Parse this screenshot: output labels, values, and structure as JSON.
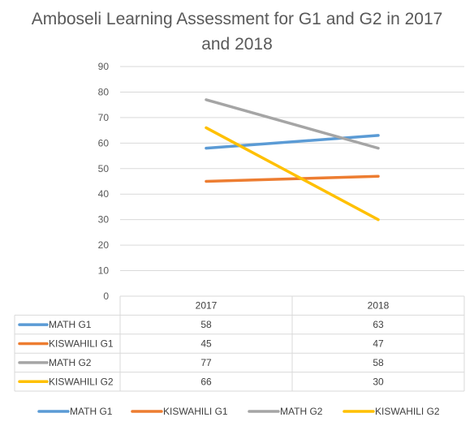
{
  "chart_data": {
    "type": "line",
    "title": "Amboseli Learning Assessment for G1 and G2 in 2017 and 2018",
    "categories": [
      "2017",
      "2018"
    ],
    "y_ticks": [
      "0",
      "10",
      "20",
      "30",
      "40",
      "50",
      "60",
      "70",
      "80",
      "90"
    ],
    "ylim": [
      0,
      90
    ],
    "grid": true,
    "data_table": true,
    "legend_position": "bottom",
    "series": [
      {
        "name": "MATH G1",
        "values": [
          58,
          63
        ],
        "color": "#5B9BD5"
      },
      {
        "name": "KISWAHILI G1",
        "values": [
          45,
          47
        ],
        "color": "#ED7D31"
      },
      {
        "name": "MATH G2",
        "values": [
          77,
          58
        ],
        "color": "#A5A5A5"
      },
      {
        "name": "KISWAHILI G2",
        "values": [
          66,
          30
        ],
        "color": "#FFC000"
      }
    ]
  }
}
